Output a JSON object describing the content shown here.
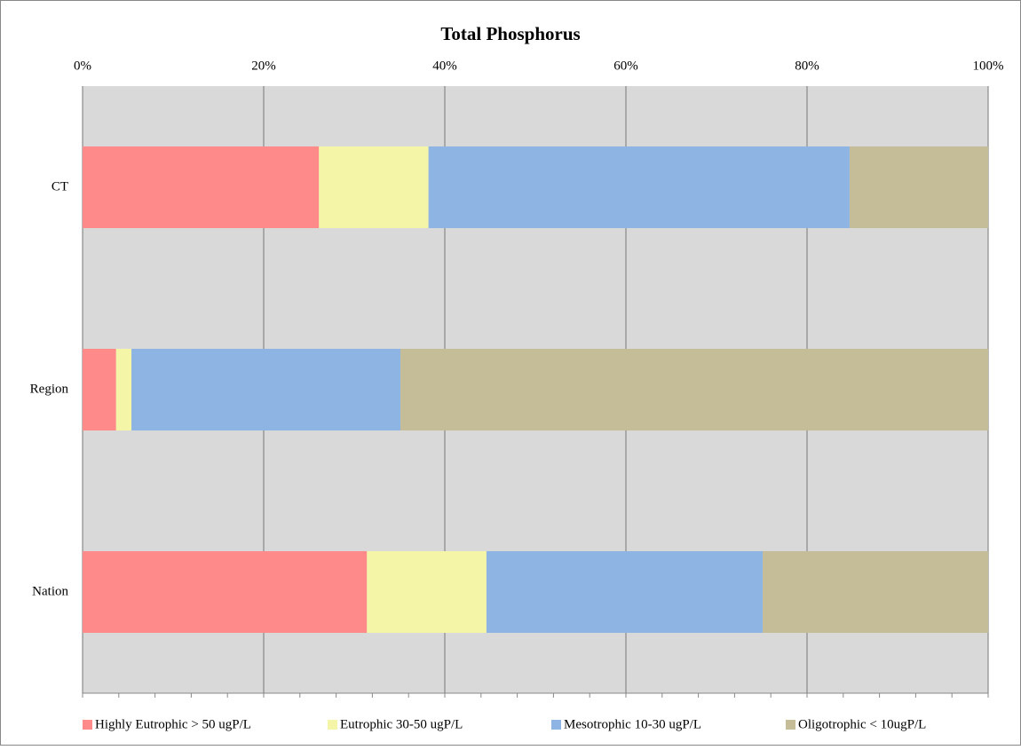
{
  "chart_data": {
    "type": "stacked_barh",
    "title": "Total Phosphorus",
    "categories": [
      "CT",
      "Region",
      "Nation"
    ],
    "series": [
      {
        "name": "Highly Eutrophic > 50 ugP/L",
        "color": "#ff8a8a",
        "values": [
          26.1,
          3.7,
          31.4
        ]
      },
      {
        "name": "Eutrophic 30-50 ugP/L",
        "color": "#f5f5a8",
        "values": [
          12.1,
          1.7,
          13.2
        ]
      },
      {
        "name": "Mesotrophic 10-30 ugP/L",
        "color": "#8eb4e3",
        "values": [
          46.5,
          29.7,
          30.5
        ]
      },
      {
        "name": "Oligotrophic < 10ugP/L",
        "color": "#c4bd97",
        "values": [
          15.3,
          64.9,
          24.9
        ]
      }
    ],
    "xlim": [
      0,
      100
    ],
    "xticks": [
      {
        "value": 0,
        "label": "0%"
      },
      {
        "value": 20,
        "label": "20%"
      },
      {
        "value": 40,
        "label": "40%"
      },
      {
        "value": 60,
        "label": "60%"
      },
      {
        "value": 80,
        "label": "80%"
      },
      {
        "value": 100,
        "label": "100%"
      }
    ],
    "xminorticks": [
      0,
      4,
      8,
      12,
      16,
      20,
      24,
      28,
      32,
      36,
      40,
      44,
      48,
      52,
      56,
      60,
      64,
      68,
      72,
      76,
      80,
      84,
      88,
      92,
      96,
      100
    ],
    "grid": true,
    "legend": "bottom"
  }
}
